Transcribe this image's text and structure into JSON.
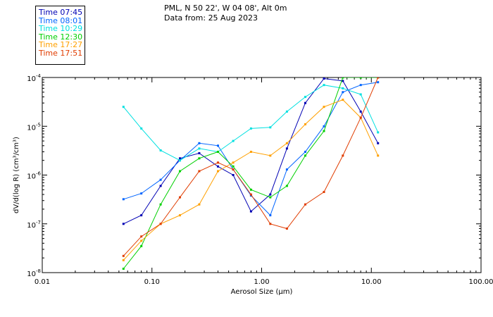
{
  "header": {
    "location": "PML, N 50 22', W 04 08', Alt 0m",
    "data_from": "Data from: 25 Aug 2023"
  },
  "chart_data": {
    "type": "line",
    "title": "",
    "xlabel": "Aerosol Size (µm)",
    "ylabel": "dV/d(log R) (cm³/cm³)",
    "xscale": "log",
    "yscale": "log",
    "xlim": [
      0.01,
      100
    ],
    "ylim": [
      1e-08,
      0.0001
    ],
    "x_ticks": [
      {
        "value": 0.01,
        "label": "0.01"
      },
      {
        "value": 0.1,
        "label": "0.10"
      },
      {
        "value": 1,
        "label": "1.00"
      },
      {
        "value": 10,
        "label": "10.00"
      },
      {
        "value": 100,
        "label": "100.00"
      }
    ],
    "y_ticks": [
      {
        "value": 1e-08,
        "mant": "10",
        "exp": "-8"
      },
      {
        "value": 1e-07,
        "mant": "10",
        "exp": "-7"
      },
      {
        "value": 1e-06,
        "mant": "10",
        "exp": "-6"
      },
      {
        "value": 1e-05,
        "mant": "10",
        "exp": "-5"
      },
      {
        "value": 0.0001,
        "mant": "10",
        "exp": "-4"
      }
    ],
    "grid": false,
    "legend_position": "top-left",
    "x": [
      0.055,
      0.08,
      0.12,
      0.18,
      0.27,
      0.4,
      0.55,
      0.8,
      1.2,
      1.7,
      2.5,
      3.7,
      5.5,
      8.0,
      11.5
    ],
    "series": [
      {
        "name": "Time 07:45",
        "color": "#0000b4",
        "values": [
          1e-07,
          1.5e-07,
          6e-07,
          2.2e-06,
          2.8e-06,
          1.5e-06,
          1e-06,
          1.8e-07,
          4e-07,
          3.5e-06,
          3e-05,
          9.5e-05,
          8.5e-05,
          2e-05,
          4.5e-06
        ]
      },
      {
        "name": "Time 08:01",
        "color": "#0064ff",
        "values": [
          3.2e-07,
          4.2e-07,
          8e-07,
          2e-06,
          4.5e-06,
          4e-06,
          1.3e-06,
          3.8e-07,
          1.5e-07,
          1.3e-06,
          3e-06,
          1e-05,
          5e-05,
          7e-05,
          8e-05
        ]
      },
      {
        "name": "Time 10:29",
        "color": "#00e0e0",
        "values": [
          2.5e-05,
          9e-06,
          3.2e-06,
          2e-06,
          3.5e-06,
          3e-06,
          5e-06,
          9e-06,
          9.5e-06,
          2e-05,
          4e-05,
          7e-05,
          6e-05,
          4.5e-05,
          7.5e-06
        ]
      },
      {
        "name": "Time 12:30",
        "color": "#00d000",
        "values": [
          1.2e-08,
          3.5e-08,
          2.5e-07,
          1.2e-06,
          2.2e-06,
          3e-06,
          1.5e-06,
          5e-07,
          3.5e-07,
          6e-07,
          2.5e-06,
          8e-06,
          0.0001,
          0.0001,
          0.0001
        ]
      },
      {
        "name": "Time 17:27",
        "color": "#ffa000",
        "values": [
          1.8e-08,
          4.5e-08,
          1e-07,
          1.5e-07,
          2.5e-07,
          1.2e-06,
          1.8e-06,
          3e-06,
          2.5e-06,
          4.5e-06,
          1.1e-05,
          2.5e-05,
          3.5e-05,
          1.5e-05,
          2.5e-06
        ]
      },
      {
        "name": "Time 17:51",
        "color": "#e03c00",
        "values": [
          2.2e-08,
          5.5e-08,
          1e-07,
          3.5e-07,
          1.2e-06,
          1.8e-06,
          1.3e-06,
          4e-07,
          1e-07,
          8e-08,
          2.5e-07,
          4.5e-07,
          2.5e-06,
          1.5e-05,
          0.0001
        ]
      }
    ]
  }
}
